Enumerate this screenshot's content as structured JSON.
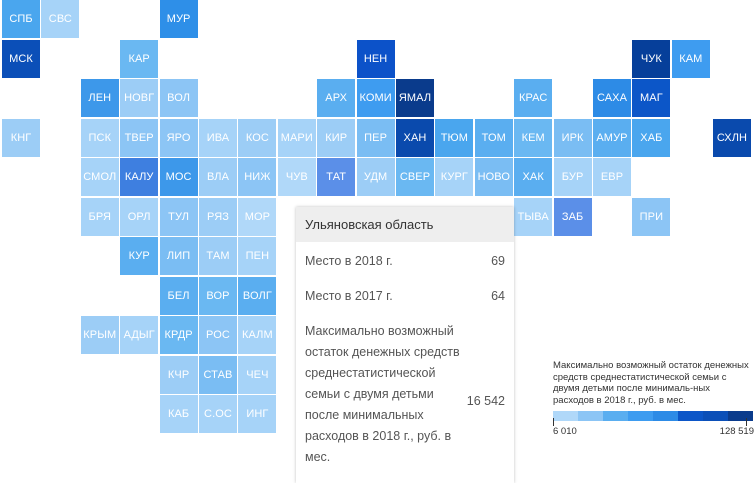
{
  "tiles": [
    {
      "label": "СПБ",
      "color": "#4aa6ee"
    },
    {
      "label": "СВС",
      "color": "#a6d3f8"
    },
    {
      "label": "МУР",
      "color": "#2e8fe8"
    },
    {
      "label": "МСК",
      "color": "#0b4fb8"
    },
    {
      "label": "КАР",
      "color": "#6ab8f2"
    },
    {
      "label": "НЕН",
      "color": "#0c52c9"
    },
    {
      "label": "ЧУК",
      "color": "#063f9a"
    },
    {
      "label": "КАМ",
      "color": "#3e9cf0"
    },
    {
      "label": "ЛЕН",
      "color": "#3d98ea"
    },
    {
      "label": "НОВГ",
      "color": "#9ccdf6"
    },
    {
      "label": "ВОЛ",
      "color": "#8cc5f5"
    },
    {
      "label": "АРХ",
      "color": "#5aaef0"
    },
    {
      "label": "КОМИ",
      "color": "#3e9cf0"
    },
    {
      "label": "ЯМАЛ",
      "color": "#0a3b8c"
    },
    {
      "label": "КРАС",
      "color": "#5aaef0"
    },
    {
      "label": "САХА",
      "color": "#2d8be6"
    },
    {
      "label": "МАГ",
      "color": "#0c56c8"
    },
    {
      "label": "КНГ",
      "color": "#9ccdf6"
    },
    {
      "label": "ПСК",
      "color": "#a6d3f8"
    },
    {
      "label": "ТВЕР",
      "color": "#8cc5f5"
    },
    {
      "label": "ЯРО",
      "color": "#8cc5f5"
    },
    {
      "label": "ИВА",
      "color": "#a6d3f8"
    },
    {
      "label": "КОС",
      "color": "#9ccdf6"
    },
    {
      "label": "МАРИ",
      "color": "#a6d3f8"
    },
    {
      "label": "КИР",
      "color": "#9ccdf6"
    },
    {
      "label": "ПЕР",
      "color": "#7abdf3"
    },
    {
      "label": "ХАН",
      "color": "#0a4aad"
    },
    {
      "label": "ТЮМ",
      "color": "#4aa6ee"
    },
    {
      "label": "ТОМ",
      "color": "#5aaef0"
    },
    {
      "label": "КЕМ",
      "color": "#6ab8f2"
    },
    {
      "label": "ИРК",
      "color": "#7abdf3"
    },
    {
      "label": "АМУР",
      "color": "#5aaef0"
    },
    {
      "label": "ХАБ",
      "color": "#4aa6ee"
    },
    {
      "label": "СХЛН",
      "color": "#0a4aad"
    },
    {
      "label": "СМОЛ",
      "color": "#a6d3f8"
    },
    {
      "label": "КАЛУ",
      "color": "#3e7fe0"
    },
    {
      "label": "МОС",
      "color": "#3d98ea"
    },
    {
      "label": "ВЛА",
      "color": "#9ccdf6"
    },
    {
      "label": "НИЖ",
      "color": "#8cc5f5"
    },
    {
      "label": "ЧУВ",
      "color": "#b0d8f9"
    },
    {
      "label": "ТАТ",
      "color": "#5b8fe8"
    },
    {
      "label": "УДМ",
      "color": "#9ccdf6"
    },
    {
      "label": "СВЕР",
      "color": "#6ab8f2"
    },
    {
      "label": "КУРГ",
      "color": "#a6d3f8"
    },
    {
      "label": "НОВО",
      "color": "#7abdf3"
    },
    {
      "label": "ХАК",
      "color": "#5aaef0"
    },
    {
      "label": "БУР",
      "color": "#a6d3f8"
    },
    {
      "label": "ЕВР",
      "color": "#a6d3f8"
    },
    {
      "label": "БРЯ",
      "color": "#a6d3f8"
    },
    {
      "label": "ОРЛ",
      "color": "#a6d3f8"
    },
    {
      "label": "ТУЛ",
      "color": "#8cc5f5"
    },
    {
      "label": "РЯЗ",
      "color": "#9ccdf6"
    },
    {
      "label": "МОР",
      "color": "#b0d8f9"
    },
    {
      "label": "ТЫВА",
      "color": "#a6d3f8"
    },
    {
      "label": "ЗАБ",
      "color": "#5b8fe8"
    },
    {
      "label": "ПРИ",
      "color": "#8cc5f5"
    },
    {
      "label": "КУР",
      "color": "#5aaef0"
    },
    {
      "label": "ЛИП",
      "color": "#7abdf3"
    },
    {
      "label": "ТАМ",
      "color": "#9ccdf6"
    },
    {
      "label": "ПЕН",
      "color": "#a6d3f8"
    },
    {
      "label": "БЕЛ",
      "color": "#5aaef0"
    },
    {
      "label": "ВОР",
      "color": "#6ab8f2"
    },
    {
      "label": "ВОЛГ",
      "color": "#5aaef0"
    },
    {
      "label": "КРЫМ",
      "color": "#9ccdf6"
    },
    {
      "label": "АДЫГ",
      "color": "#a6d3f8"
    },
    {
      "label": "КРДР",
      "color": "#6ab8f2"
    },
    {
      "label": "РОС",
      "color": "#8cc5f5"
    },
    {
      "label": "КАЛМ",
      "color": "#a6d3f8"
    },
    {
      "label": "КЧР",
      "color": "#9ccdf6"
    },
    {
      "label": "СТАВ",
      "color": "#7abdf3"
    },
    {
      "label": "ЧЕЧ",
      "color": "#a6d3f8"
    },
    {
      "label": "КАБ",
      "color": "#a6d3f8"
    },
    {
      "label": "С.ОС",
      "color": "#a6d3f8"
    },
    {
      "label": "ИНГ",
      "color": "#a6d3f8"
    }
  ],
  "tooltip": {
    "title": "Ульяновская область",
    "row1_label": "Место в 2018 г.",
    "row1_value": "69",
    "row2_label": "Место в 2017 г.",
    "row2_value": "64",
    "row3_label": "Максимально возможный остаток денежных средств среднестатистической семьи с двумя детьми после минимальных расходов в 2018 г., руб. в мес.",
    "row3_value": "16 542"
  },
  "legend": {
    "title": "Максимально возможный остаток денежных средств среднестатистической семьи с двумя детьми после минималь-ных расходов в 2018 г., руб. в мес.",
    "min": "6 010",
    "max": "128 519",
    "colors": [
      "#b0d8f9",
      "#8cc5f5",
      "#5aaef0",
      "#3e9cf0",
      "#2d8be6",
      "#0c56c8",
      "#0b4fb8",
      "#0a3b8c"
    ]
  }
}
